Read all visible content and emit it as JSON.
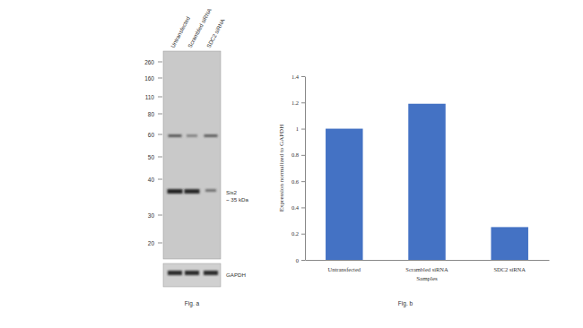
{
  "blot": {
    "lanes": [
      "Untransfected",
      "Scrambled siRNA",
      "SDC2 siRNA"
    ],
    "markers": [
      260,
      160,
      110,
      80,
      60,
      50,
      40,
      30,
      20
    ],
    "band_label": [
      "Sis2",
      "~ 35 kDa"
    ],
    "loading_control": "GAPDH",
    "caption": "Fig. a"
  },
  "chart_data": {
    "type": "bar",
    "categories": [
      "Untransfected",
      "Scrambled siRNA",
      "SDC2 siRNA"
    ],
    "values": [
      1,
      1.19,
      0.25
    ],
    "color": "#4472c4",
    "ylim": [
      0,
      1.4
    ],
    "yticks": [
      0,
      0.2,
      0.4,
      0.6,
      0.8,
      1,
      1.2,
      1.4
    ],
    "x_label": "Samples",
    "y_label": "Expression normalized to GAPDH",
    "caption": "Fig. b",
    "grid": false
  }
}
